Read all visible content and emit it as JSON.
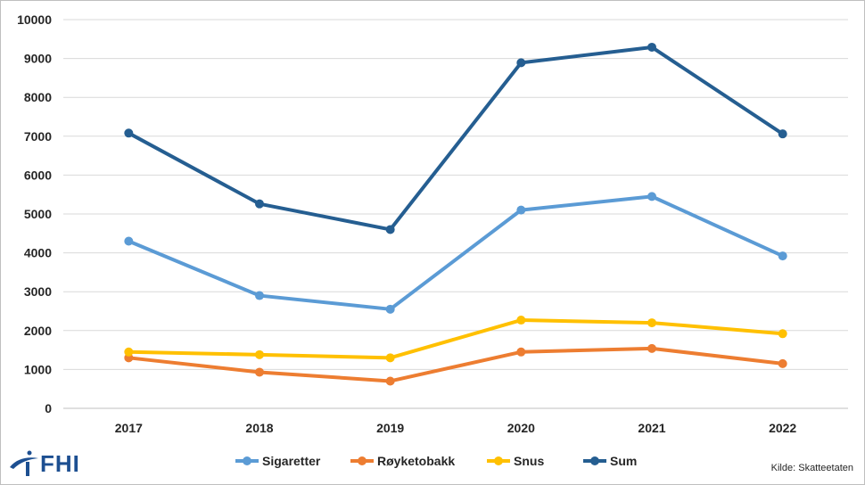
{
  "chart_data": {
    "type": "line",
    "title": "",
    "xlabel": "",
    "ylabel": "",
    "categories": [
      "2017",
      "2018",
      "2019",
      "2020",
      "2021",
      "2022"
    ],
    "ylim": [
      0,
      10000
    ],
    "yticks": [
      0,
      1000,
      2000,
      3000,
      4000,
      5000,
      6000,
      7000,
      8000,
      9000,
      10000
    ],
    "grid": true,
    "legend_position": "bottom",
    "series": [
      {
        "name": "Sigaretter",
        "color": "#5b9bd5",
        "values": [
          4300,
          2900,
          2550,
          5100,
          5450,
          3920
        ]
      },
      {
        "name": "Røyketobakk",
        "color": "#ed7d31",
        "values": [
          1300,
          930,
          700,
          1450,
          1540,
          1150
        ]
      },
      {
        "name": "Snus",
        "color": "#ffc000",
        "values": [
          1450,
          1380,
          1300,
          2270,
          2200,
          1920
        ]
      },
      {
        "name": "Sum",
        "color": "#255e91",
        "values": [
          7080,
          5260,
          4600,
          8890,
          9290,
          7060
        ]
      }
    ]
  },
  "logo": {
    "text": "FHI",
    "icon": "fhi-swoosh-icon"
  },
  "source_note": "Kilde: Skatteetaten"
}
